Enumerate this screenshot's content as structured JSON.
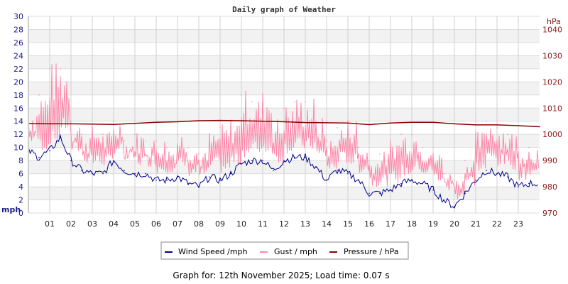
{
  "chart_data": {
    "type": "line",
    "title": "Daily graph of Weather",
    "ylabel": "mph",
    "y2label": "hPa",
    "ylim": [
      0,
      30
    ],
    "y2lim": [
      970,
      1045
    ],
    "xlim": [
      0,
      24
    ],
    "yticks": [
      "0",
      "2",
      "4",
      "6",
      "8",
      "10",
      "12",
      "14",
      "16",
      "18",
      "20",
      "22",
      "24",
      "26",
      "28",
      "30"
    ],
    "y2ticks": [
      "970",
      "980",
      "990",
      "1000",
      "1010",
      "1020",
      "1030",
      "1040"
    ],
    "xticks": [
      "01",
      "02",
      "03",
      "04",
      "05",
      "06",
      "07",
      "08",
      "09",
      "10",
      "11",
      "12",
      "13",
      "14",
      "15",
      "16",
      "17",
      "18",
      "19",
      "20",
      "21",
      "22",
      "23"
    ],
    "grid": true,
    "legend_position": "bottom",
    "series": [
      {
        "name": "Wind Speed /mph",
        "color": "#00008b",
        "axis": "left",
        "x_step_hours": 0.5,
        "values": [
          9.5,
          8.5,
          9.5,
          11.5,
          8,
          6.5,
          6,
          6,
          8,
          6.5,
          6,
          6,
          5,
          5,
          5.5,
          4.5,
          4,
          5.5,
          5,
          6,
          7.5,
          8,
          8,
          6.5,
          8,
          8.5,
          8.5,
          7,
          5,
          6.5,
          6,
          5,
          3,
          3,
          3.5,
          4.5,
          5,
          4.5,
          3.5,
          2,
          1,
          3,
          5,
          6.5,
          6,
          5.5,
          4,
          4.5
        ]
      },
      {
        "name": "Gust / mph",
        "color": "#ff88aa",
        "axis": "left",
        "x_step_hours": 0.5,
        "values": [
          16,
          18,
          22,
          22,
          14,
          12,
          13,
          12,
          14,
          11,
          12,
          11,
          11,
          10,
          12,
          10,
          9,
          12,
          13,
          14,
          18,
          17,
          18,
          14,
          16,
          17,
          17,
          14,
          11,
          13,
          14,
          10,
          8,
          9,
          11,
          12,
          12,
          10,
          9,
          6,
          5,
          8,
          12,
          14,
          13,
          12,
          10,
          10
        ]
      },
      {
        "name": "Pressure / hPa",
        "color": "#8b0000",
        "axis": "right",
        "x_step_hours": 1,
        "values": [
          1004.1,
          1004.0,
          1004.0,
          1003.9,
          1003.8,
          1004.2,
          1004.6,
          1004.8,
          1005.2,
          1005.3,
          1005.2,
          1005.0,
          1004.8,
          1004.5,
          1004.4,
          1004.3,
          1003.7,
          1004.3,
          1004.6,
          1004.6,
          1004.0,
          1003.6,
          1003.6,
          1003.3,
          1002.9
        ]
      }
    ],
    "footer": "Graph for: 12th November 2025; Load time: 0.07 s"
  }
}
